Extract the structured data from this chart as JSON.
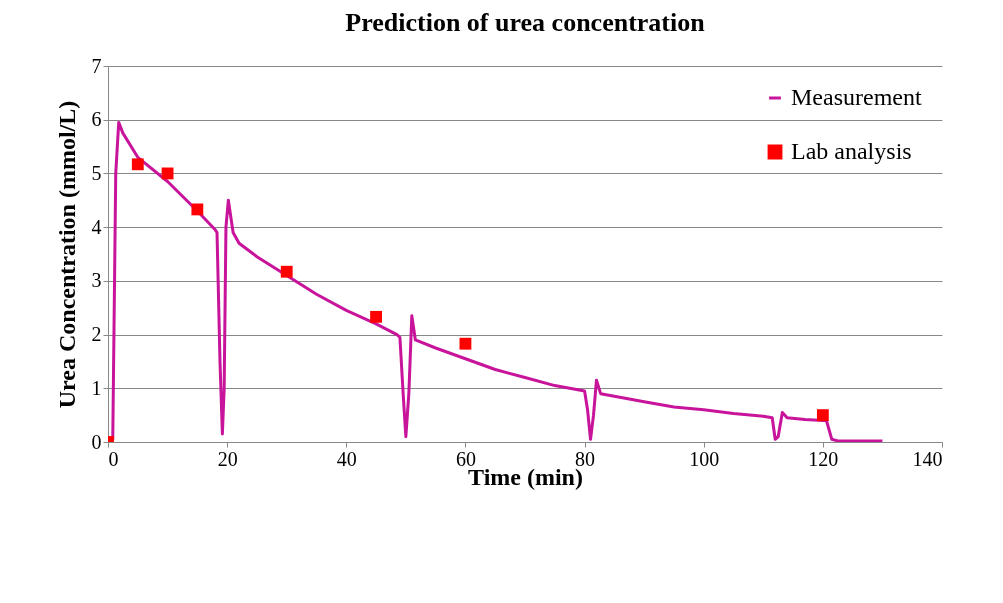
{
  "chart_data": {
    "type": "line",
    "title": "Prediction of urea concentration",
    "xlabel": "Time (min)",
    "ylabel": "Urea Concentration (mmol/L)",
    "xlim": [
      0,
      140
    ],
    "xticks": [
      0,
      20,
      40,
      60,
      80,
      100,
      120,
      140
    ],
    "ylim": [
      0,
      7
    ],
    "yticks": [
      0,
      1,
      2,
      3,
      4,
      5,
      6,
      7
    ],
    "grid": "y",
    "legend": "top right",
    "series": [
      {
        "name": "Measurement",
        "color": "#c8149b",
        "marker": "none",
        "x": [
          0,
          0.8,
          1.3,
          1.8,
          2.5,
          5,
          10,
          15,
          18,
          18.3,
          18.8,
          19.2,
          19.5,
          19.8,
          20.2,
          21,
          22,
          25,
          30,
          35,
          40,
          45,
          48.5,
          49,
          49.6,
          50,
          50.5,
          51,
          51.6,
          55,
          60,
          65,
          70,
          75,
          80,
          80.5,
          81,
          81.5,
          82,
          82.7,
          85,
          90,
          95,
          100,
          105,
          110,
          111.5,
          112,
          112.5,
          113.2,
          114,
          117,
          120,
          120.6,
          121.5,
          122.5,
          130
        ],
        "values": [
          0,
          0.05,
          5,
          5.95,
          5.75,
          5.3,
          4.85,
          4.3,
          3.95,
          3.9,
          1.5,
          0.15,
          1,
          4,
          4.5,
          3.9,
          3.7,
          3.45,
          3.1,
          2.75,
          2.45,
          2.2,
          2,
          1.95,
          0.8,
          0.1,
          0.9,
          2.35,
          1.9,
          1.75,
          1.55,
          1.35,
          1.2,
          1.05,
          0.95,
          0.6,
          0.05,
          0.5,
          1.15,
          0.9,
          0.85,
          0.75,
          0.65,
          0.6,
          0.53,
          0.48,
          0.45,
          0.05,
          0.1,
          0.55,
          0.45,
          0.42,
          0.4,
          0.4,
          0.05,
          0.02,
          0.02
        ]
      },
      {
        "name": "Lab analysis",
        "color": "#ff0000",
        "type": "scatter",
        "marker": "square",
        "x": [
          0,
          5,
          10,
          15,
          30,
          45,
          60,
          120
        ],
        "values": [
          0,
          5.17,
          5,
          4.33,
          3.17,
          2.33,
          1.83,
          0.5
        ]
      }
    ]
  }
}
